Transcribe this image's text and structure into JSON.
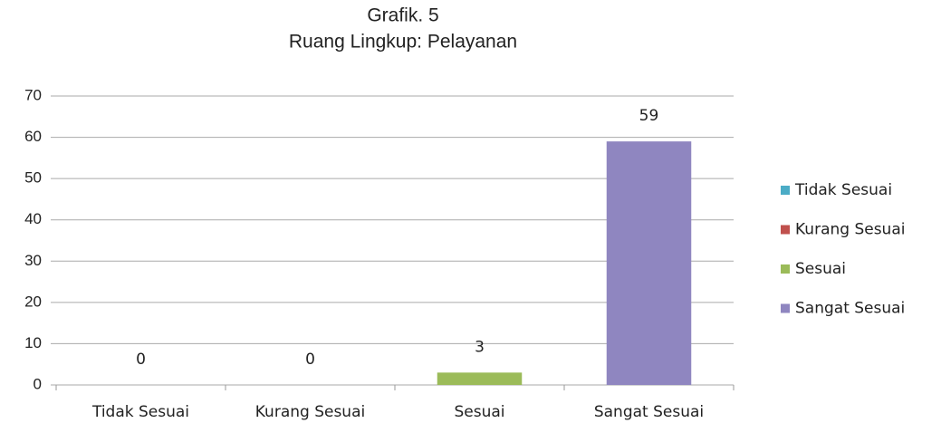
{
  "chart_data": {
    "type": "bar",
    "title": "Grafik. 5",
    "subtitle": "Ruang Lingkup: Pelayanan",
    "categories": [
      "Tidak Sesuai",
      "Kurang Sesuai",
      "Sesuai",
      "Sangat Sesuai"
    ],
    "values": [
      0,
      0,
      3,
      59
    ],
    "colors": [
      "#4bacc6",
      "#c0504d",
      "#9bbb59",
      "#8f86c0"
    ],
    "ylim": [
      0,
      70
    ],
    "yticks": [
      0,
      10,
      20,
      30,
      40,
      50,
      60,
      70
    ],
    "grid": true,
    "legend": "right"
  }
}
